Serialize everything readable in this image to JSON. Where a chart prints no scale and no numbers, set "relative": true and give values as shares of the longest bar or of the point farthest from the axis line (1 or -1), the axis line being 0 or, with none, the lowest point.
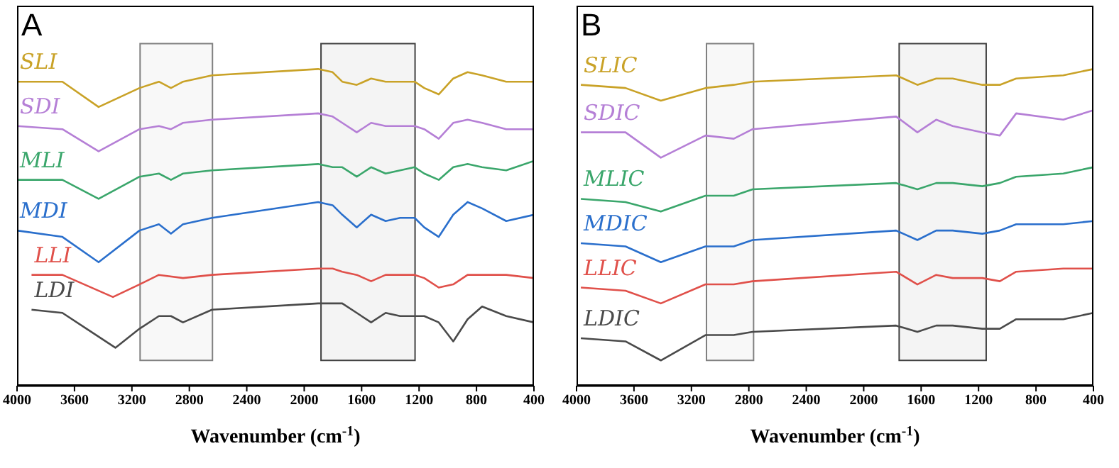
{
  "chart_data": [
    {
      "type": "line",
      "relative": true,
      "annotations": [
        "A"
      ],
      "xlabel": "Wavenumber (cm$^{-1}$)",
      "xlim": [
        4000,
        400
      ],
      "xticks": [
        4000,
        3600,
        3200,
        2800,
        2400,
        2000,
        1600,
        1200,
        800,
        400
      ],
      "marker": "none",
      "bands": [
        {
          "axis": "x",
          "from": 3143,
          "to": 2639,
          "color": "#808080"
        },
        {
          "axis": "x",
          "from": 1883,
          "to": 1228,
          "color": "#404040"
        }
      ],
      "series": [
        {
          "name": "SLI",
          "color": "#c9a227",
          "x": [
            4000,
            3684,
            3432,
            3147,
            3012,
            2928,
            2844,
            2642,
            1903,
            1802,
            1735,
            1634,
            1534,
            1433,
            1332,
            1231,
            1164,
            1063,
            962,
            862,
            761,
            593,
            400
          ],
          "values": [
            0.96,
            0.96,
            0.88,
            0.94,
            0.96,
            0.94,
            0.96,
            0.98,
            1.0,
            0.99,
            0.96,
            0.95,
            0.97,
            0.96,
            0.96,
            0.96,
            0.94,
            0.92,
            0.97,
            0.99,
            0.98,
            0.96,
            0.96
          ]
        },
        {
          "name": "SDI",
          "color": "#b57fd6",
          "x": [
            4000,
            3684,
            3432,
            3147,
            3012,
            2928,
            2844,
            2642,
            1903,
            1802,
            1735,
            1634,
            1534,
            1433,
            1332,
            1231,
            1164,
            1063,
            962,
            862,
            761,
            593,
            400
          ],
          "values": [
            0.82,
            0.81,
            0.74,
            0.81,
            0.82,
            0.81,
            0.83,
            0.84,
            0.86,
            0.85,
            0.83,
            0.8,
            0.83,
            0.82,
            0.82,
            0.82,
            0.81,
            0.78,
            0.83,
            0.84,
            0.83,
            0.81,
            0.81
          ]
        },
        {
          "name": "MLI",
          "color": "#3aa66b",
          "x": [
            4000,
            3684,
            3432,
            3147,
            3012,
            2928,
            2844,
            2642,
            1903,
            1802,
            1735,
            1634,
            1534,
            1433,
            1332,
            1231,
            1164,
            1063,
            962,
            862,
            761,
            593,
            400
          ],
          "values": [
            0.65,
            0.65,
            0.59,
            0.66,
            0.67,
            0.65,
            0.67,
            0.68,
            0.7,
            0.69,
            0.69,
            0.66,
            0.69,
            0.67,
            0.68,
            0.69,
            0.67,
            0.65,
            0.69,
            0.7,
            0.69,
            0.68,
            0.71
          ]
        },
        {
          "name": "MDI",
          "color": "#2a6fcc",
          "x": [
            4000,
            3684,
            3432,
            3147,
            3012,
            2928,
            2844,
            2642,
            1903,
            1802,
            1735,
            1634,
            1534,
            1433,
            1332,
            1231,
            1164,
            1063,
            962,
            862,
            761,
            593,
            400
          ],
          "values": [
            0.49,
            0.47,
            0.39,
            0.49,
            0.51,
            0.48,
            0.51,
            0.53,
            0.58,
            0.57,
            0.54,
            0.5,
            0.54,
            0.52,
            0.53,
            0.53,
            0.5,
            0.47,
            0.54,
            0.58,
            0.56,
            0.52,
            0.54
          ]
        },
        {
          "name": "LLI",
          "color": "#e0504a",
          "x": [
            3899,
            3684,
            3332,
            3147,
            3012,
            2844,
            2642,
            1903,
            1802,
            1735,
            1634,
            1534,
            1433,
            1332,
            1231,
            1164,
            1063,
            962,
            862,
            761,
            593,
            400
          ],
          "values": [
            0.35,
            0.35,
            0.28,
            0.32,
            0.35,
            0.34,
            0.35,
            0.37,
            0.37,
            0.36,
            0.35,
            0.33,
            0.35,
            0.35,
            0.35,
            0.34,
            0.31,
            0.32,
            0.35,
            0.35,
            0.35,
            0.34
          ]
        },
        {
          "name": "LDI",
          "color": "#4a4a4a",
          "x": [
            3899,
            3684,
            3516,
            3315,
            3147,
            3012,
            2928,
            2844,
            2642,
            1903,
            1735,
            1634,
            1534,
            1433,
            1332,
            1231,
            1164,
            1063,
            962,
            862,
            761,
            593,
            400
          ],
          "values": [
            0.24,
            0.23,
            0.18,
            0.12,
            0.18,
            0.22,
            0.22,
            0.2,
            0.24,
            0.26,
            0.26,
            0.23,
            0.2,
            0.23,
            0.22,
            0.22,
            0.22,
            0.2,
            0.14,
            0.21,
            0.25,
            0.22,
            0.2
          ]
        }
      ]
    },
    {
      "type": "line",
      "relative": true,
      "annotations": [
        "B"
      ],
      "xlabel": "Wavenumber (cm$^{-1}$)",
      "xlim": [
        4000,
        400
      ],
      "xticks": [
        4000,
        3600,
        3200,
        2800,
        2400,
        2000,
        1600,
        1200,
        800,
        400
      ],
      "marker": "none",
      "bands": [
        {
          "axis": "x",
          "from": 3095,
          "to": 2767,
          "color": "#808080"
        },
        {
          "axis": "x",
          "from": 1753,
          "to": 1147,
          "color": "#404040"
        }
      ],
      "x": [
        3970,
        3659,
        3413,
        3102,
        2905,
        2774,
        1774,
        1626,
        1495,
        1380,
        1174,
        1052,
        938,
        610,
        400
      ],
      "series": [
        {
          "name": "SLIC",
          "color": "#c9a227",
          "values": [
            0.95,
            0.94,
            0.9,
            0.94,
            0.95,
            0.96,
            0.98,
            0.95,
            0.97,
            0.97,
            0.95,
            0.95,
            0.97,
            0.98,
            1.0
          ]
        },
        {
          "name": "SDIC",
          "color": "#b57fd6",
          "values": [
            0.8,
            0.8,
            0.72,
            0.79,
            0.78,
            0.81,
            0.85,
            0.8,
            0.84,
            0.82,
            0.8,
            0.79,
            0.86,
            0.84,
            0.87
          ]
        },
        {
          "name": "MLIC",
          "color": "#3aa66b",
          "values": [
            0.59,
            0.58,
            0.55,
            0.6,
            0.6,
            0.62,
            0.64,
            0.62,
            0.64,
            0.64,
            0.63,
            0.64,
            0.66,
            0.67,
            0.69
          ]
        },
        {
          "name": "MDIC",
          "color": "#2a6fcc",
          "values": [
            0.45,
            0.44,
            0.39,
            0.44,
            0.44,
            0.46,
            0.49,
            0.46,
            0.49,
            0.49,
            0.48,
            0.49,
            0.51,
            0.51,
            0.52
          ]
        },
        {
          "name": "LLIC",
          "color": "#e0504a",
          "values": [
            0.31,
            0.3,
            0.26,
            0.32,
            0.32,
            0.33,
            0.36,
            0.32,
            0.35,
            0.34,
            0.34,
            0.33,
            0.36,
            0.37,
            0.37
          ]
        },
        {
          "name": "LDIC",
          "color": "#4a4a4a",
          "values": [
            0.15,
            0.14,
            0.08,
            0.16,
            0.16,
            0.17,
            0.19,
            0.17,
            0.19,
            0.19,
            0.18,
            0.18,
            0.21,
            0.21,
            0.23
          ]
        }
      ]
    }
  ]
}
